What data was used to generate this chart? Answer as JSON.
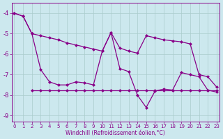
{
  "background_color": "#cce8ee",
  "grid_color": "#aacccc",
  "line_color": "#880088",
  "xlabel": "Windchill (Refroidissement éolien,°C)",
  "xlim": [
    0,
    23
  ],
  "ylim": [
    -9.3,
    -3.5
  ],
  "yticks": [
    -9,
    -8,
    -7,
    -6,
    -5,
    -4
  ],
  "xticks": [
    0,
    1,
    2,
    3,
    4,
    5,
    6,
    7,
    8,
    9,
    10,
    11,
    12,
    13,
    14,
    15,
    16,
    17,
    18,
    19,
    20,
    21,
    22,
    23
  ],
  "line1_x": [
    0,
    1,
    2,
    3,
    4,
    5,
    6,
    7,
    8,
    9,
    10,
    11,
    12,
    13,
    14,
    15,
    16,
    17,
    18,
    19,
    20,
    21,
    22,
    23
  ],
  "line1_y": [
    -4.0,
    -4.15,
    -5.0,
    -5.1,
    -5.2,
    -5.3,
    -5.45,
    -5.55,
    -5.65,
    -5.75,
    -5.85,
    -4.95,
    -5.7,
    -5.85,
    -5.95,
    -5.1,
    -5.2,
    -5.3,
    -5.35,
    -5.4,
    -5.5,
    -7.0,
    -7.1,
    -7.6
  ],
  "line2_x": [
    0,
    1,
    2,
    3,
    4,
    5,
    6,
    7,
    8,
    9,
    10,
    11,
    12,
    13,
    14,
    15,
    16,
    17,
    18,
    19,
    20,
    21,
    22,
    23
  ],
  "line2_y": [
    -4.0,
    -4.15,
    -5.0,
    -6.75,
    -7.35,
    -7.5,
    -7.5,
    -7.35,
    -7.4,
    -7.5,
    -5.85,
    -4.95,
    -6.7,
    -6.85,
    -8.0,
    -8.6,
    -7.8,
    -7.7,
    -7.75,
    -6.9,
    -7.0,
    -7.1,
    -7.75,
    -7.85
  ],
  "line3_x": [
    2,
    3,
    4,
    5,
    6,
    7,
    8,
    9,
    10,
    11,
    12,
    13,
    14,
    15,
    16,
    17,
    18,
    19,
    20,
    21,
    22,
    23
  ],
  "line3_y": [
    -7.75,
    -7.75,
    -7.75,
    -7.75,
    -7.75,
    -7.75,
    -7.75,
    -7.75,
    -7.75,
    -7.75,
    -7.75,
    -7.75,
    -7.75,
    -7.75,
    -7.75,
    -7.75,
    -7.75,
    -7.75,
    -7.75,
    -7.75,
    -7.75,
    -7.75
  ]
}
